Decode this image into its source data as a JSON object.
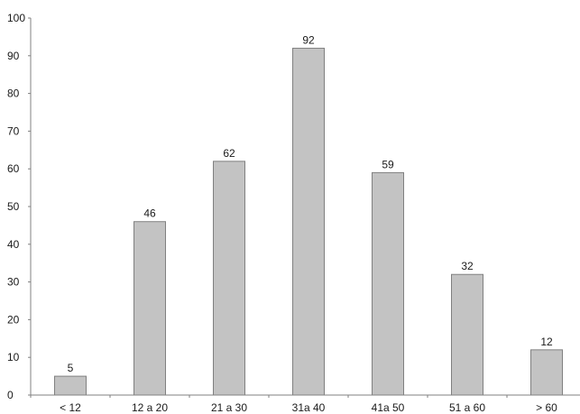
{
  "chart_data": {
    "type": "bar",
    "categories": [
      "< 12",
      "12 a 20",
      "21 a 30",
      "31a 40",
      "41a 50",
      "51 a 60",
      "> 60"
    ],
    "values": [
      5,
      46,
      62,
      92,
      59,
      32,
      12
    ],
    "data_labels": [
      "5",
      "46",
      "62",
      "92",
      "59",
      "32",
      "12"
    ],
    "title": "",
    "xlabel": "",
    "ylabel": "",
    "ylim": [
      0,
      100
    ],
    "yticks": [
      0,
      10,
      20,
      30,
      40,
      50,
      60,
      70,
      80,
      90,
      100
    ],
    "ytick_labels": [
      "0",
      "10",
      "20",
      "30",
      "40",
      "50",
      "60",
      "70",
      "80",
      "90",
      "100"
    ],
    "grid": false,
    "legend": "none",
    "colors": {
      "bar_fill": "#c3c3c3",
      "bar_stroke": "#808080",
      "axis": "#808080",
      "text": "#1a1a1a"
    }
  }
}
